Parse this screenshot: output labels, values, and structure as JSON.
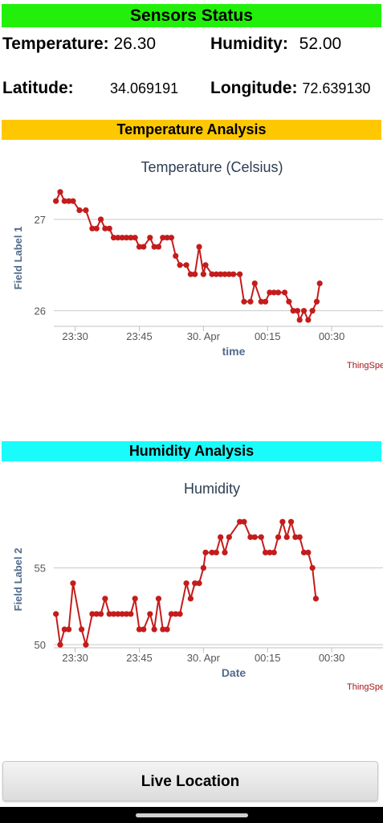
{
  "status": {
    "title": "Sensors Status",
    "temperature_label": "Temperature:",
    "temperature_value": "26.30",
    "humidity_label": "Humidity:",
    "humidity_value": "52.00",
    "latitude_label": "Latitude:",
    "latitude_value": "34.069191",
    "longitude_label": "Longitude:",
    "longitude_value": "72.639130"
  },
  "temp_section": {
    "title": "Temperature Analysis"
  },
  "hum_section": {
    "title": "Humidity Analysis"
  },
  "button": {
    "label": "Live Location"
  },
  "colors": {
    "status": "#22f00a",
    "temp": "#fec800",
    "hum": "#1afcfc",
    "series": "#c41c1c"
  },
  "chart_data": [
    {
      "type": "line",
      "title": "Temperature (Celsius)",
      "xlabel": "time",
      "ylabel": "Field Label 1",
      "credit": "ThingSpe",
      "x_range_minutes": [
        -35,
        42
      ],
      "ylim": [
        25.83,
        27.36
      ],
      "y_ticks": [
        26,
        27
      ],
      "x_ticks": [
        {
          "label": "23:30",
          "m": -30
        },
        {
          "label": "23:45",
          "m": -15
        },
        {
          "label": "30. Apr",
          "m": 0
        },
        {
          "label": "00:15",
          "m": 15
        },
        {
          "label": "00:30",
          "m": 30
        }
      ],
      "grid": true,
      "points": [
        [
          -34.5,
          27.2
        ],
        [
          -33.5,
          27.3
        ],
        [
          -32.5,
          27.2
        ],
        [
          -31.5,
          27.2
        ],
        [
          -30.5,
          27.2
        ],
        [
          -29,
          27.1
        ],
        [
          -27.5,
          27.1
        ],
        [
          -26,
          26.9
        ],
        [
          -25,
          26.9
        ],
        [
          -24,
          27.0
        ],
        [
          -23,
          26.9
        ],
        [
          -22,
          26.9
        ],
        [
          -21,
          26.8
        ],
        [
          -20,
          26.8
        ],
        [
          -19,
          26.8
        ],
        [
          -18,
          26.8
        ],
        [
          -17,
          26.8
        ],
        [
          -16,
          26.8
        ],
        [
          -15,
          26.7
        ],
        [
          -14,
          26.7
        ],
        [
          -12.5,
          26.8
        ],
        [
          -11.5,
          26.7
        ],
        [
          -10.5,
          26.7
        ],
        [
          -9.5,
          26.8
        ],
        [
          -8.5,
          26.8
        ],
        [
          -7.5,
          26.8
        ],
        [
          -6.5,
          26.6
        ],
        [
          -5.5,
          26.5
        ],
        [
          -4,
          26.5
        ],
        [
          -3,
          26.4
        ],
        [
          -2,
          26.4
        ],
        [
          -1,
          26.7
        ],
        [
          0,
          26.4
        ],
        [
          0.5,
          26.5
        ],
        [
          2,
          26.4
        ],
        [
          3,
          26.4
        ],
        [
          4,
          26.4
        ],
        [
          5,
          26.4
        ],
        [
          6,
          26.4
        ],
        [
          7,
          26.4
        ],
        [
          8.5,
          26.4
        ],
        [
          9.5,
          26.1
        ],
        [
          11,
          26.1
        ],
        [
          12,
          26.3
        ],
        [
          13.5,
          26.1
        ],
        [
          14.5,
          26.1
        ],
        [
          15.5,
          26.2
        ],
        [
          16.5,
          26.2
        ],
        [
          17.5,
          26.2
        ],
        [
          19,
          26.2
        ],
        [
          20,
          26.1
        ],
        [
          21,
          26.0
        ],
        [
          22,
          26.0
        ],
        [
          22.5,
          25.9
        ],
        [
          23.5,
          26.0
        ],
        [
          24.5,
          25.9
        ],
        [
          25.5,
          26.0
        ],
        [
          26.5,
          26.1
        ],
        [
          27.2,
          26.3
        ]
      ]
    },
    {
      "type": "line",
      "title": "Humidity",
      "xlabel": "Date",
      "ylabel": "Field Label 2",
      "credit": "ThingSpe",
      "x_range_minutes": [
        -35,
        42
      ],
      "ylim": [
        49.8,
        58.9
      ],
      "y_ticks": [
        50,
        55
      ],
      "x_ticks": [
        {
          "label": "23:30",
          "m": -30
        },
        {
          "label": "23:45",
          "m": -15
        },
        {
          "label": "30. Apr",
          "m": 0
        },
        {
          "label": "00:15",
          "m": 15
        },
        {
          "label": "00:30",
          "m": 30
        }
      ],
      "grid": true,
      "points": [
        [
          -34.5,
          52
        ],
        [
          -33.5,
          50
        ],
        [
          -32.5,
          51
        ],
        [
          -31.5,
          51
        ],
        [
          -30.5,
          54
        ],
        [
          -28.5,
          51
        ],
        [
          -27.5,
          50
        ],
        [
          -26,
          52
        ],
        [
          -25,
          52
        ],
        [
          -24,
          52
        ],
        [
          -23,
          53
        ],
        [
          -22,
          52
        ],
        [
          -21,
          52
        ],
        [
          -20,
          52
        ],
        [
          -19,
          52
        ],
        [
          -18,
          52
        ],
        [
          -17,
          52
        ],
        [
          -16,
          53
        ],
        [
          -15,
          51
        ],
        [
          -14,
          51
        ],
        [
          -12.5,
          52
        ],
        [
          -11.5,
          51
        ],
        [
          -10.5,
          53
        ],
        [
          -9.5,
          51
        ],
        [
          -8.5,
          51
        ],
        [
          -7.5,
          52
        ],
        [
          -6.5,
          52
        ],
        [
          -5.5,
          52
        ],
        [
          -4,
          54
        ],
        [
          -3,
          53
        ],
        [
          -2,
          54
        ],
        [
          -1,
          54
        ],
        [
          0,
          55
        ],
        [
          0.5,
          56
        ],
        [
          2,
          56
        ],
        [
          3,
          56
        ],
        [
          4,
          57
        ],
        [
          5,
          56
        ],
        [
          6,
          57
        ],
        [
          8.5,
          58
        ],
        [
          9.5,
          58
        ],
        [
          11,
          57
        ],
        [
          12,
          57
        ],
        [
          13.5,
          57
        ],
        [
          14.5,
          56
        ],
        [
          15.5,
          56
        ],
        [
          16.5,
          56
        ],
        [
          17.5,
          57
        ],
        [
          18.5,
          58
        ],
        [
          19.5,
          57
        ],
        [
          20.5,
          58
        ],
        [
          21.5,
          57
        ],
        [
          22.5,
          57
        ],
        [
          23.5,
          56
        ],
        [
          24.5,
          56
        ],
        [
          25.5,
          55
        ],
        [
          26.3,
          53
        ]
      ]
    }
  ]
}
